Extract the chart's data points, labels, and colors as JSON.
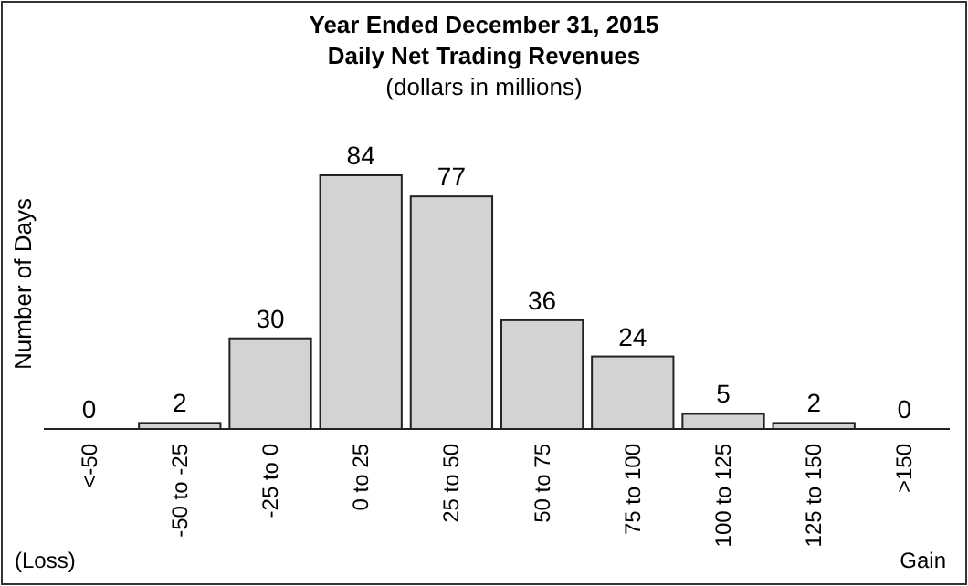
{
  "chart_data": {
    "type": "bar",
    "title": "Year Ended December 31, 2015\nDaily Net Trading Revenues",
    "subtitle": "(dollars in millions)",
    "ylabel": "Number of Days",
    "categories": [
      "<-50",
      "-50 to -25",
      "-25 to 0",
      "0 to 25",
      "25 to 50",
      "50 to 75",
      "75 to 100",
      "100 to 125",
      "125 to 150",
      ">150"
    ],
    "values": [
      0,
      2,
      30,
      84,
      77,
      36,
      24,
      5,
      2,
      0
    ],
    "color": "#d3d3d3",
    "data_labels": true,
    "annotations": [
      "(Loss)",
      "Gain"
    ]
  }
}
